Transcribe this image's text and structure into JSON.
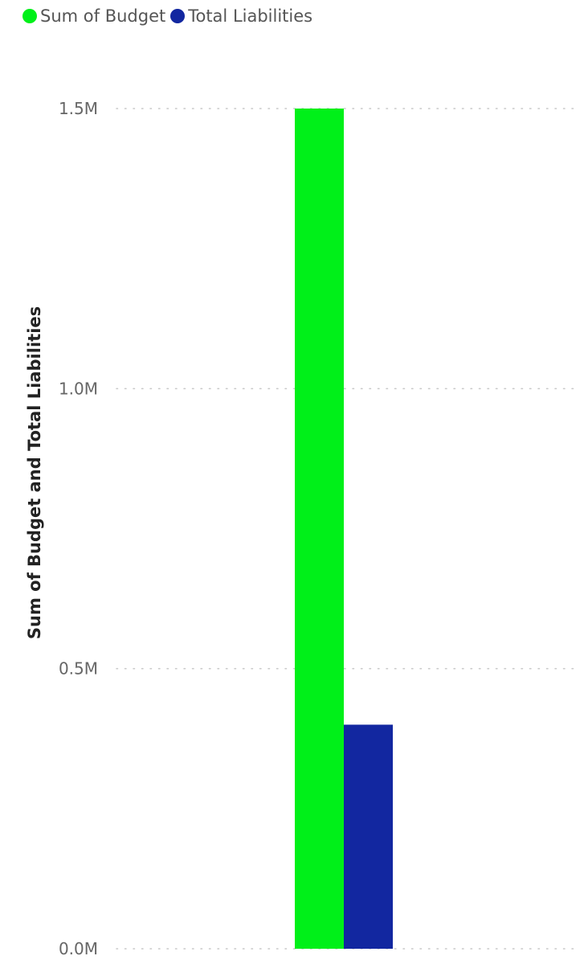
{
  "chart_data": {
    "type": "bar",
    "categories": [
      ""
    ],
    "series": [
      {
        "name": "Sum of Budget",
        "values": [
          1500000
        ],
        "color": "#00F019"
      },
      {
        "name": "Total Liabilities",
        "values": [
          400000
        ],
        "color": "#1227A0"
      }
    ],
    "ylabel": "Sum of Budget and Total Liabilities",
    "xlabel": "",
    "ylim": [
      0,
      1500000
    ],
    "yticks": [
      {
        "value": 0,
        "label": "0.0M"
      },
      {
        "value": 500000,
        "label": "0.5M"
      },
      {
        "value": 1000000,
        "label": "1.0M"
      },
      {
        "value": 1500000,
        "label": "1.5M"
      }
    ],
    "grid": true,
    "legend_position": "top-left"
  },
  "legend": [
    {
      "label": "Sum of Budget",
      "color": "#00F019"
    },
    {
      "label": "Total Liabilities",
      "color": "#1227A0"
    }
  ]
}
